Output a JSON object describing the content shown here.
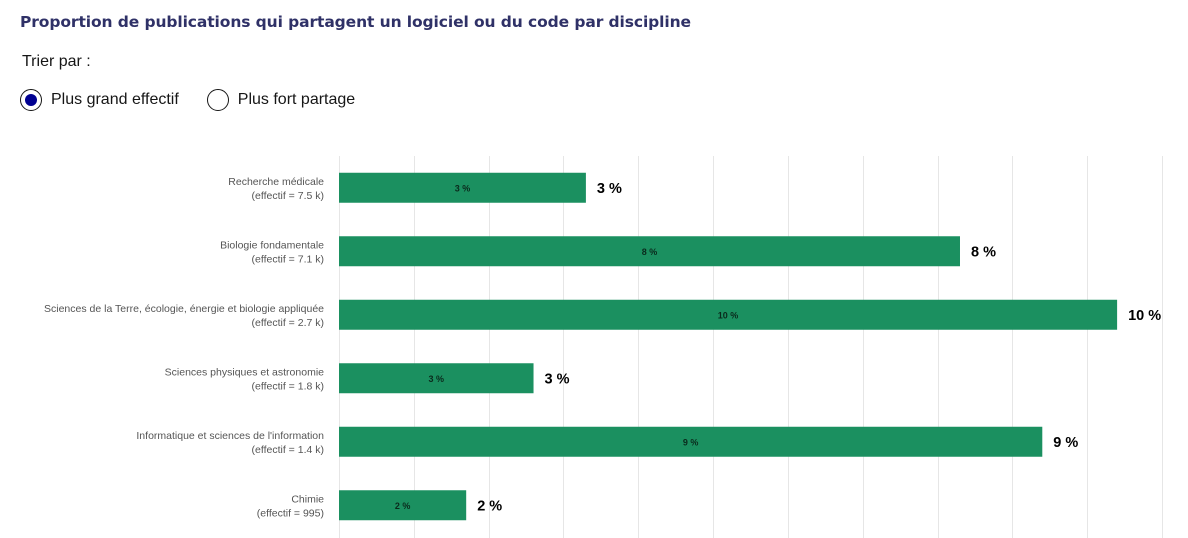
{
  "title": "Proportion de publications qui partagent un logiciel ou du code par discipline",
  "sort": {
    "label": "Trier par :",
    "options": [
      {
        "label": "Plus grand effectif",
        "selected": true
      },
      {
        "label": "Plus fort partage",
        "selected": false
      }
    ]
  },
  "colors": {
    "bar": "#1b9060",
    "grid": "#e6e6e6",
    "radio_accent": "#000091"
  },
  "chart_data": {
    "type": "bar",
    "orientation": "horizontal",
    "categories": [
      "Recherche médicale",
      "Biologie fondamentale",
      "Sciences de la Terre, écologie, énergie et biologie appliquée",
      "Sciences physiques et astronomie",
      "Informatique et sciences de l'information",
      "Chimie"
    ],
    "category_sublabels": [
      "(effectif = 7.5 k)",
      "(effectif = 7.1 k)",
      "(effectif = 2.7 k)",
      "(effectif = 1.8 k)",
      "(effectif = 1.4 k)",
      "(effectif = 995)"
    ],
    "values": [
      3.3,
      8.3,
      10.4,
      2.6,
      9.4,
      1.7
    ],
    "inner_labels": [
      "3 %",
      "8 %",
      "10 %",
      "3 %",
      "9 %",
      "2 %"
    ],
    "outer_labels": [
      "3 %",
      "8 %",
      "10 %",
      "3 %",
      "9 %",
      "2 %"
    ],
    "xlim": [
      0,
      11
    ],
    "grid": true,
    "legend": false
  }
}
